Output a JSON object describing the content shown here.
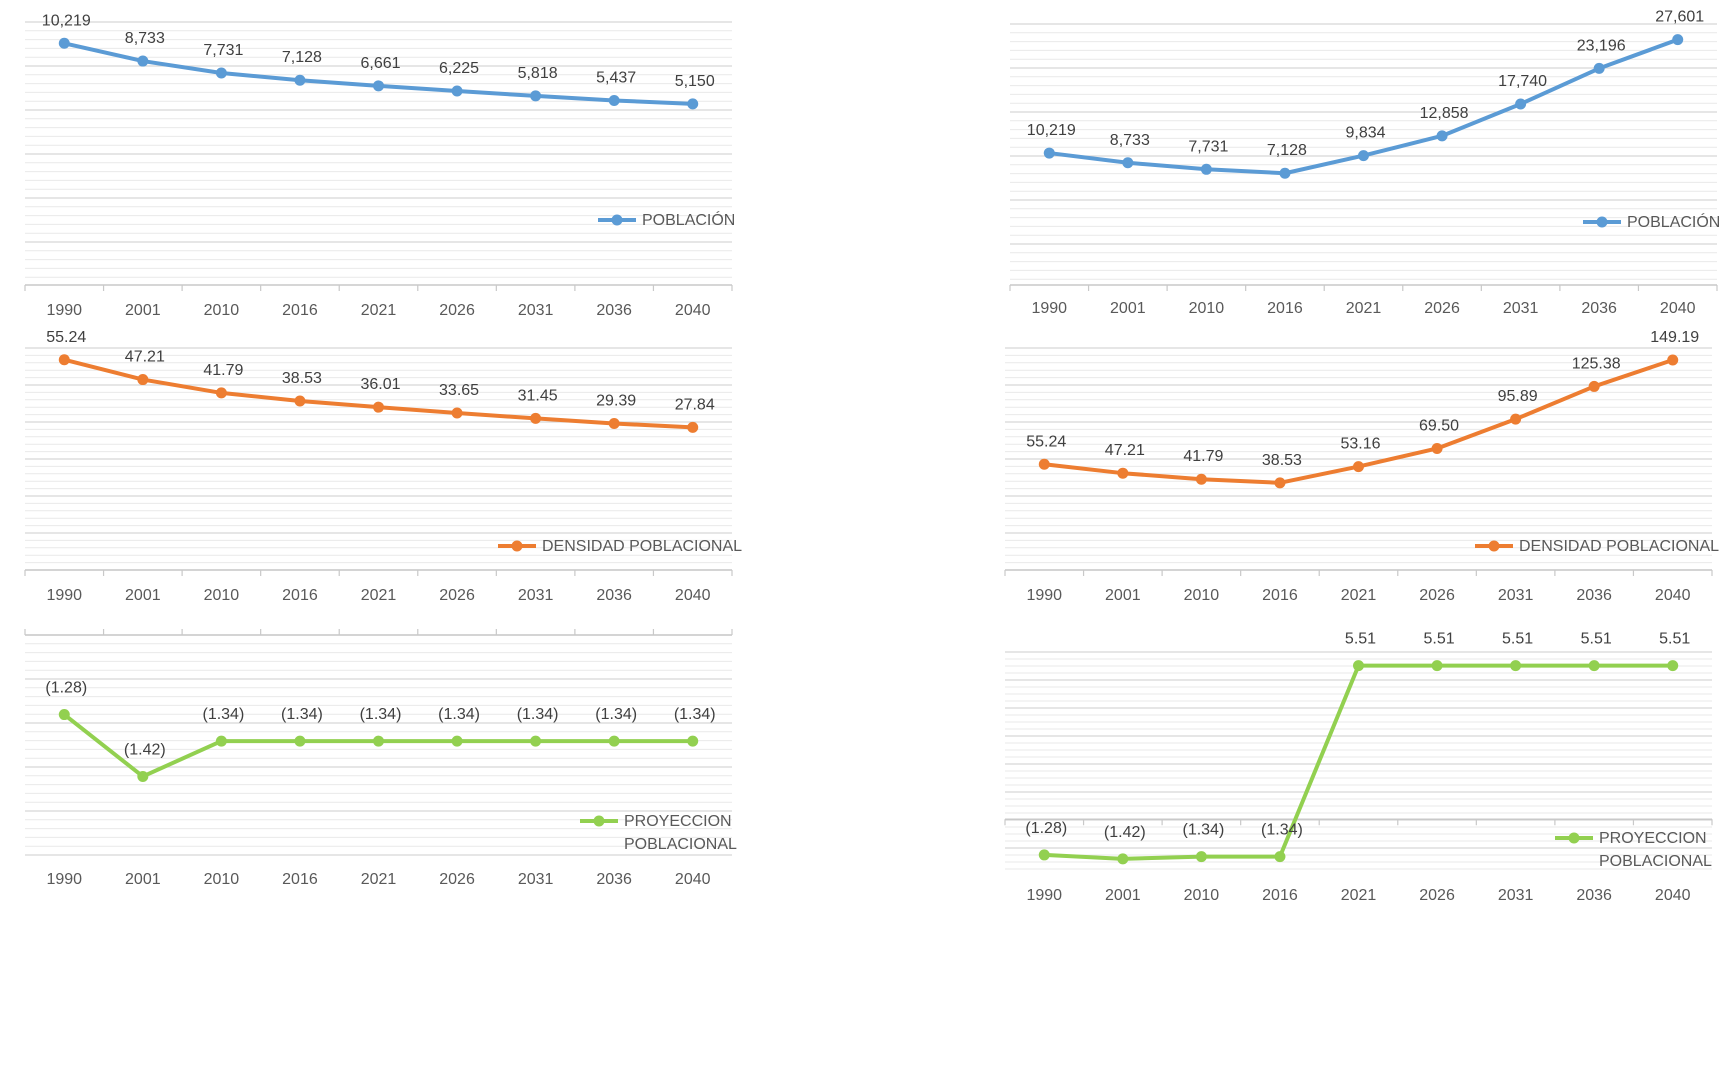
{
  "charts": [
    {
      "id": "poblacion-left",
      "type": "line",
      "categories": [
        "1990",
        "2001",
        "2010",
        "2016",
        "2021",
        "2026",
        "2031",
        "2036",
        "2040"
      ],
      "series": [
        {
          "name": "POBLACIÓN",
          "values": [
            10219,
            8733,
            7731,
            7128,
            6661,
            6225,
            5818,
            5437,
            5150
          ],
          "color": "#5b9bd5"
        }
      ],
      "value_labels": [
        "10,219",
        "8,733",
        "7,731",
        "7,128",
        "6,661",
        "6,225",
        "5,818",
        "5,437",
        "5,150"
      ],
      "legend_lines": [
        "POBLACIÓN"
      ],
      "ylim": [
        -10000,
        12000
      ],
      "axis_position": "bottom",
      "legend_placement": "bottom-right"
    },
    {
      "id": "poblacion-right",
      "type": "line",
      "categories": [
        "1990",
        "2001",
        "2010",
        "2016",
        "2021",
        "2026",
        "2031",
        "2036",
        "2040"
      ],
      "series": [
        {
          "name": "POBLACIÓN",
          "values": [
            10219,
            8733,
            7731,
            7128,
            9834,
            12858,
            17740,
            23196,
            27601
          ],
          "color": "#5b9bd5"
        }
      ],
      "value_labels": [
        "10,219",
        "8,733",
        "7,731",
        "7,128",
        "9,834",
        "12,858",
        "17,740",
        "23,196",
        "27,601"
      ],
      "legend_lines": [
        "POBLACIÓN"
      ],
      "ylim": [
        -10000,
        30000
      ],
      "axis_position": "bottom",
      "legend_placement": "bottom-right"
    },
    {
      "id": "densidad-left",
      "type": "line",
      "categories": [
        "1990",
        "2001",
        "2010",
        "2016",
        "2021",
        "2026",
        "2031",
        "2036",
        "2040"
      ],
      "series": [
        {
          "name": "DENSIDAD POBLACIONAL",
          "values": [
            55.24,
            47.21,
            41.79,
            38.53,
            36.01,
            33.65,
            31.45,
            29.39,
            27.84
          ],
          "color": "#ed7d31"
        }
      ],
      "value_labels": [
        "55.24",
        "47.21",
        "41.79",
        "38.53",
        "36.01",
        "33.65",
        "31.45",
        "29.39",
        "27.84"
      ],
      "legend_lines": [
        "DENSIDAD POBLACIONAL"
      ],
      "ylim": [
        -30,
        60
      ],
      "axis_position": "bottom",
      "legend_placement": "bottom-right"
    },
    {
      "id": "densidad-right",
      "type": "line",
      "categories": [
        "1990",
        "2001",
        "2010",
        "2016",
        "2021",
        "2026",
        "2031",
        "2036",
        "2040"
      ],
      "series": [
        {
          "name": "DENSIDAD POBLACIONAL",
          "values": [
            55.24,
            47.21,
            41.79,
            38.53,
            53.16,
            69.5,
            95.89,
            125.38,
            149.19
          ],
          "color": "#ed7d31"
        }
      ],
      "value_labels": [
        "55.24",
        "47.21",
        "41.79",
        "38.53",
        "53.16",
        "69.50",
        "95.89",
        "125.38",
        "149.19"
      ],
      "legend_lines": [
        "DENSIDAD POBLACIONAL"
      ],
      "ylim": [
        -40,
        160
      ],
      "axis_position": "bottom",
      "legend_placement": "bottom-right"
    },
    {
      "id": "proyeccion-left",
      "type": "line",
      "categories": [
        "1990",
        "2001",
        "2010",
        "2016",
        "2021",
        "2026",
        "2031",
        "2036",
        "2040"
      ],
      "series": [
        {
          "name": "PROYECCION POBLACIONAL",
          "values": [
            -1.28,
            -1.42,
            -1.34,
            -1.34,
            -1.34,
            -1.34,
            -1.34,
            -1.34,
            -1.34
          ],
          "color": "#92d050"
        }
      ],
      "value_labels": [
        "(1.28)",
        "(1.42)",
        "(1.34)",
        "(1.34)",
        "(1.34)",
        "(1.34)",
        "(1.34)",
        "(1.34)",
        "(1.34)"
      ],
      "legend_lines": [
        "PROYECCION",
        "POBLACIONAL"
      ],
      "ylim": [
        -1.6,
        -1.1
      ],
      "axis_position": "top",
      "legend_placement": "bottom-right"
    },
    {
      "id": "proyeccion-right",
      "type": "line",
      "categories": [
        "1990",
        "2001",
        "2010",
        "2016",
        "2021",
        "2026",
        "2031",
        "2036",
        "2040"
      ],
      "series": [
        {
          "name": "PROYECCION POBLACIONAL",
          "values": [
            -1.28,
            -1.42,
            -1.34,
            -1.34,
            5.51,
            5.51,
            5.51,
            5.51,
            5.51
          ],
          "color": "#92d050"
        }
      ],
      "value_labels": [
        "(1.28)",
        "(1.42)",
        "(1.34)",
        "(1.34)",
        "5.51",
        "5.51",
        "5.51",
        "5.51",
        "5.51"
      ],
      "legend_lines": [
        "PROYECCION",
        "POBLACIONAL"
      ],
      "ylim": [
        -2,
        6
      ],
      "zero_axis": true,
      "axis_position": "zero",
      "legend_placement": "bottom-right"
    }
  ]
}
